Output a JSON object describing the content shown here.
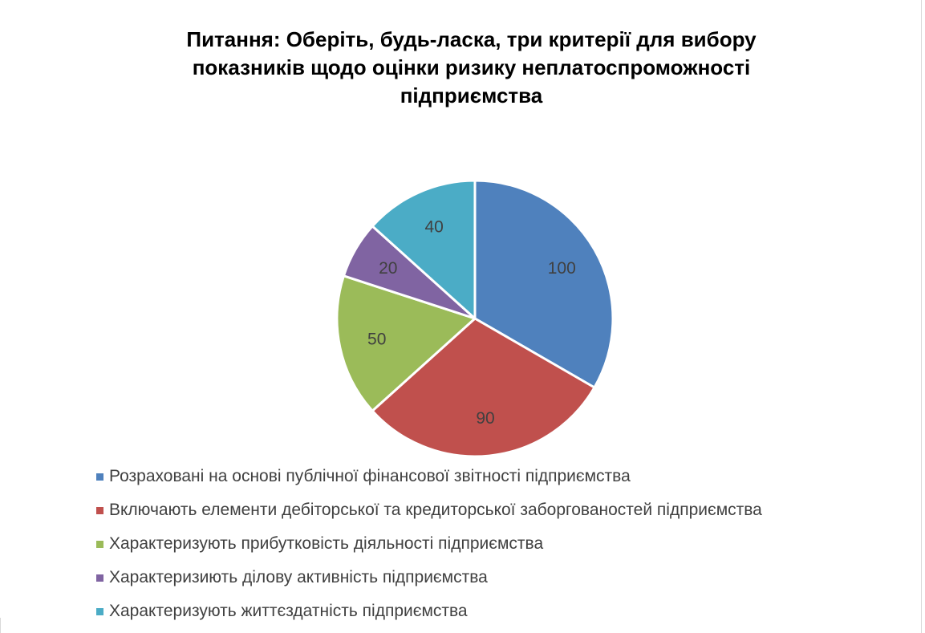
{
  "chart_data": {
    "type": "pie",
    "title_lines": [
      "Питання: Оберіть, будь-ласка, три критерії для вибору",
      "показників щодо оцінки ризику неплатоспроможності",
      "підприємства"
    ],
    "categories": [
      "Розраховані на основі публічної фінансової звітності підприємства",
      "Включають елементи дебіторської та кредиторської заборгованостей підприємства",
      "Характеризують прибутковість діяльності підприємства",
      "Характеризиють ділову активність підприємства",
      "Характеризують життєздатність підприємства"
    ],
    "values": [
      100,
      90,
      50,
      20,
      40
    ],
    "data_labels": [
      "100",
      "90",
      "50",
      "20",
      "40"
    ],
    "colors": [
      "#4f81bd",
      "#c0504d",
      "#9bbb59",
      "#8064a2",
      "#4bacc6"
    ],
    "legend_position": "bottom",
    "start_angle": "12 o'clock",
    "direction": "clockwise"
  }
}
